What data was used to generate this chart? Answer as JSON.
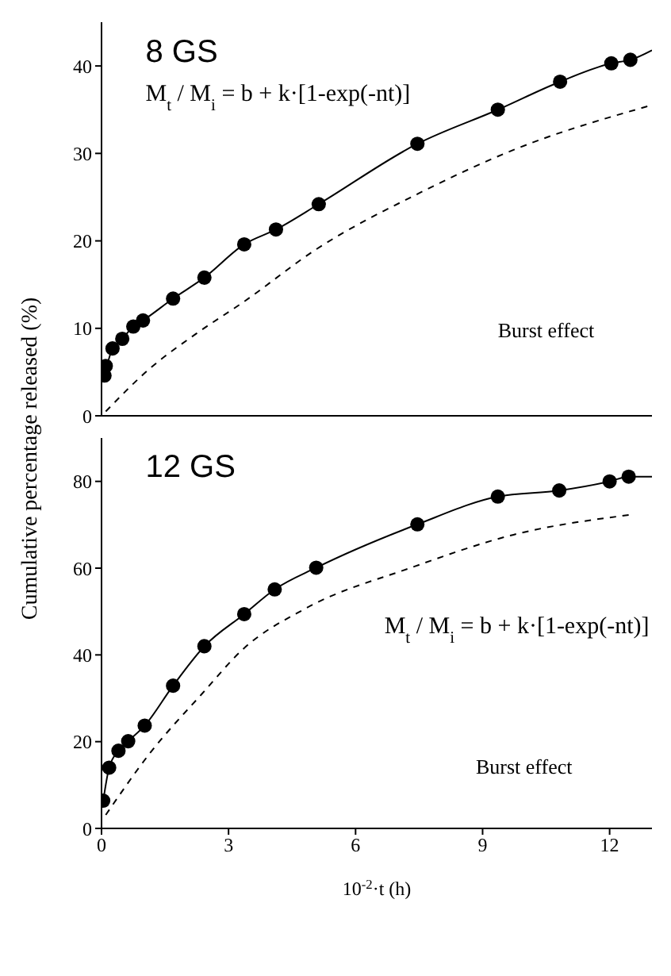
{
  "chart_data": [
    {
      "type": "scatter",
      "ylabel": "Cumulative percentage released (%)",
      "xlim": [
        0,
        13
      ],
      "xticks": [
        0,
        3,
        6,
        9,
        12
      ],
      "ylim": [
        0,
        45
      ],
      "yticks": [
        0,
        10,
        20,
        30,
        40
      ],
      "tick_labels": "y",
      "grid": false,
      "legend": false,
      "marker": "circle",
      "annotations": [
        "8 GS",
        "M$_{t}$ / M$_{i}$ = b + k·[1-exp(-nt)]",
        "Burst effect"
      ],
      "series": [
        {
          "type": "line",
          "color": "#000000",
          "line_style": "solid",
          "marker": "none",
          "x": [
            0.07,
            0.26,
            0.49,
            0.75,
            0.98,
            1.69,
            2.43,
            3.37,
            4.12,
            5.13,
            7.46,
            9.36,
            10.83,
            12.04,
            12.49,
            13
          ],
          "values": [
            4.6,
            7.7,
            8.8,
            10.2,
            10.9,
            13.4,
            15.8,
            19.6,
            21.3,
            24.2,
            31.1,
            35.0,
            38.2,
            40.3,
            40.7,
            41.8
          ]
        },
        {
          "type": "line",
          "color": "#000000",
          "line_style": "dashed",
          "marker": "none",
          "x": [
            0.1,
            1.14,
            2.24,
            3.35,
            5.06,
            7.52,
            9.73,
            12.98
          ],
          "values": [
            0.5,
            5.4,
            9.4,
            13.0,
            19.0,
            25.5,
            30.4,
            35.5
          ]
        },
        {
          "color": "#000000",
          "x": [
            0.07,
            0.1,
            0.26,
            0.49,
            0.75,
            0.98,
            1.69,
            2.43,
            3.37,
            4.12,
            5.13,
            7.46,
            9.36,
            10.83,
            12.04,
            12.49
          ],
          "values": [
            4.6,
            5.7,
            7.7,
            8.8,
            10.2,
            10.9,
            13.4,
            15.8,
            19.6,
            21.3,
            24.2,
            31.1,
            35.0,
            38.2,
            40.3,
            40.7
          ]
        }
      ]
    },
    {
      "type": "scatter",
      "xlabel": "10$^{-2}$·t (h)",
      "xlim": [
        0,
        13
      ],
      "xticks": [
        0,
        3,
        6,
        9,
        12
      ],
      "ylim": [
        0,
        90
      ],
      "yticks": [
        0,
        20,
        40,
        60,
        80
      ],
      "grid": false,
      "legend": false,
      "marker": "circle",
      "annotations": [
        "12 GS",
        "M$_{t}$ / M$_{i}$ = b + k·[1-exp(-nt)]",
        "Burst effect"
      ],
      "series": [
        {
          "type": "line",
          "color": "#000000",
          "line_style": "solid",
          "marker": "none",
          "x": [
            0.04,
            0.18,
            0.4,
            0.63,
            1.02,
            1.69,
            2.43,
            3.37,
            4.09,
            5.07,
            7.46,
            9.36,
            10.81,
            12.0,
            12.45,
            13
          ],
          "values": [
            6.4,
            14.0,
            17.9,
            20.1,
            23.7,
            32.9,
            42.0,
            49.4,
            55.1,
            60.1,
            70.1,
            76.5,
            77.9,
            80.0,
            81.1,
            81.1
          ]
        },
        {
          "type": "line",
          "color": "#000000",
          "line_style": "dashed",
          "marker": "none",
          "x": [
            0.1,
            1.14,
            2.37,
            3.35,
            4.82,
            7.28,
            9.73,
            12.49
          ],
          "values": [
            3.1,
            17.3,
            31,
            41.4,
            50.7,
            60,
            67.7,
            72.3
          ]
        },
        {
          "color": "#000000",
          "x": [
            0.04,
            0.18,
            0.4,
            0.63,
            1.02,
            1.69,
            2.43,
            3.37,
            4.09,
            5.07,
            7.46,
            9.36,
            10.81,
            12.0,
            12.45
          ],
          "values": [
            6.4,
            14.0,
            17.9,
            20.1,
            23.7,
            32.9,
            42.0,
            49.4,
            55.1,
            60.1,
            70.1,
            76.5,
            77.9,
            80.0,
            81.1
          ]
        }
      ]
    }
  ]
}
